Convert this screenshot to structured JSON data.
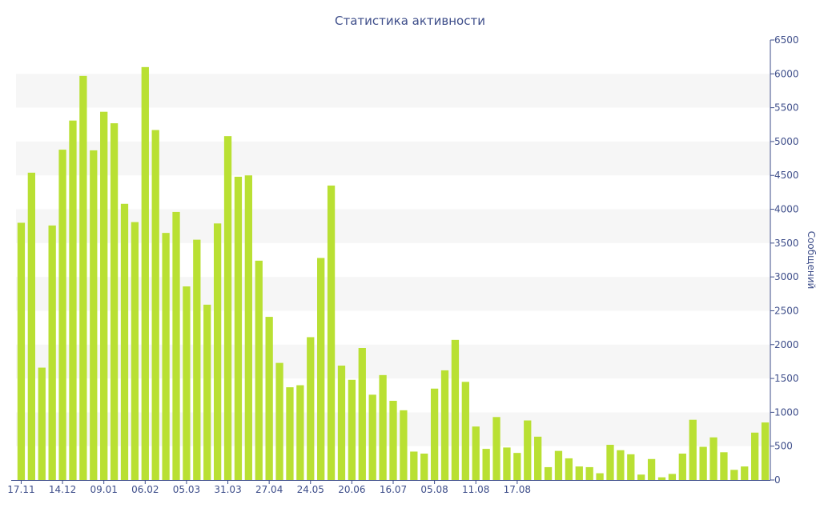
{
  "chart_data": {
    "type": "bar",
    "title": "Статистика активности",
    "xlabel": "",
    "ylabel": "Сообщений",
    "y_axis_side": "right",
    "ylim": [
      0,
      6500
    ],
    "yticks": [
      0,
      500,
      1000,
      1500,
      2000,
      2500,
      3000,
      3500,
      4000,
      4500,
      5000,
      5500,
      6000,
      6500
    ],
    "grid": "alternating horizontal bands",
    "legend": "none",
    "bar_color": "#b9e033",
    "band_color": "#f6f6f6",
    "axis_color": "#3e4e8a",
    "xtick_labels": [
      {
        "index": 0,
        "label": "17.11"
      },
      {
        "index": 4,
        "label": "14.12"
      },
      {
        "index": 8,
        "label": "09.01"
      },
      {
        "index": 12,
        "label": "06.02"
      },
      {
        "index": 16,
        "label": "05.03"
      },
      {
        "index": 20,
        "label": "31.03"
      },
      {
        "index": 24,
        "label": "27.04"
      },
      {
        "index": 28,
        "label": "24.05"
      },
      {
        "index": 32,
        "label": "20.06"
      },
      {
        "index": 36,
        "label": "16.07"
      },
      {
        "index": 40,
        "label": "05.08"
      },
      {
        "index": 44,
        "label": "11.08"
      },
      {
        "index": 48,
        "label": "17.08"
      }
    ],
    "values": [
      3800,
      4540,
      1660,
      3760,
      4880,
      5310,
      5970,
      4870,
      5440,
      5270,
      4080,
      3810,
      6100,
      5170,
      3650,
      3960,
      2860,
      3550,
      2590,
      3790,
      5080,
      4480,
      4500,
      3240,
      2410,
      1730,
      1370,
      1400,
      2110,
      3280,
      4350,
      1690,
      1480,
      1950,
      1260,
      1550,
      1170,
      1030,
      420,
      390,
      1350,
      1620,
      2070,
      1450,
      790,
      460,
      930,
      480,
      400,
      880,
      640,
      190,
      430,
      320,
      200,
      190,
      100,
      520,
      440,
      380,
      80,
      310,
      40,
      90,
      390,
      890,
      490,
      630,
      410,
      150,
      200,
      700,
      850
    ]
  }
}
